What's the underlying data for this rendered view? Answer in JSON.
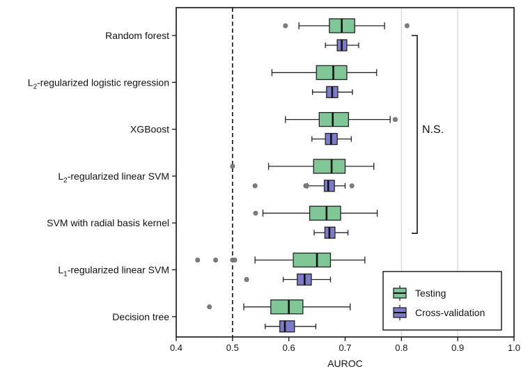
{
  "chart_data": {
    "type": "box",
    "orientation": "horizontal",
    "xlabel": "AUROC",
    "xlim": [
      0.4,
      1.0
    ],
    "xticks": [
      "0.4",
      "0.5",
      "0.6",
      "0.7",
      "0.8",
      "0.9",
      "1.0"
    ],
    "reference_line": 0.5,
    "vertical_grid_at": [
      0.8,
      0.9
    ],
    "significance_label": "N.S.",
    "significance_bracket": {
      "from": "Random forest",
      "to": "SVM with radial basis kernel"
    },
    "legend": {
      "position": "lower-right",
      "entries": [
        {
          "name": "Testing",
          "color": "#7fc796"
        },
        {
          "name": "Cross-validation",
          "color": "#7b7bc9"
        }
      ]
    },
    "categories": [
      {
        "label": "Random forest",
        "sub": ""
      },
      {
        "label": "L",
        "sub": "2",
        "rest": "-regularized logistic regression"
      },
      {
        "label": "XGBoost",
        "sub": ""
      },
      {
        "label": "L",
        "sub": "2",
        "rest": "-regularized linear SVM"
      },
      {
        "label": "SVM with radial basis kernel",
        "sub": ""
      },
      {
        "label": "L",
        "sub": "1",
        "rest": "-regularized linear SVM"
      },
      {
        "label": "Decision tree",
        "sub": ""
      }
    ],
    "series": [
      {
        "name": "Testing",
        "color": "#7fc796",
        "boxes": [
          {
            "whislo": 0.618,
            "q1": 0.672,
            "med": 0.694,
            "q3": 0.717,
            "whishi": 0.77,
            "fliers": [
              0.594,
              0.81
            ]
          },
          {
            "whislo": 0.57,
            "q1": 0.649,
            "med": 0.679,
            "q3": 0.703,
            "whishi": 0.756,
            "fliers": []
          },
          {
            "whislo": 0.594,
            "q1": 0.654,
            "med": 0.678,
            "q3": 0.706,
            "whishi": 0.78,
            "fliers": [
              0.789
            ]
          },
          {
            "whislo": 0.564,
            "q1": 0.644,
            "med": 0.676,
            "q3": 0.7,
            "whishi": 0.751,
            "fliers": [
              0.5
            ]
          },
          {
            "whislo": 0.554,
            "q1": 0.637,
            "med": 0.667,
            "q3": 0.692,
            "whishi": 0.757,
            "fliers": [
              0.541
            ]
          },
          {
            "whislo": 0.54,
            "q1": 0.608,
            "med": 0.65,
            "q3": 0.674,
            "whishi": 0.735,
            "fliers": [
              0.438,
              0.47,
              0.5,
              0.504
            ]
          },
          {
            "whislo": 0.52,
            "q1": 0.568,
            "med": 0.6,
            "q3": 0.625,
            "whishi": 0.709,
            "fliers": [
              0.459
            ]
          }
        ]
      },
      {
        "name": "Cross-validation",
        "color": "#7b7bc9",
        "boxes": [
          {
            "whislo": 0.665,
            "q1": 0.686,
            "med": 0.694,
            "q3": 0.703,
            "whishi": 0.724,
            "fliers": []
          },
          {
            "whislo": 0.642,
            "q1": 0.667,
            "med": 0.677,
            "q3": 0.687,
            "whishi": 0.713,
            "fliers": []
          },
          {
            "whislo": 0.641,
            "q1": 0.665,
            "med": 0.675,
            "q3": 0.686,
            "whishi": 0.711,
            "fliers": []
          },
          {
            "whislo": 0.633,
            "q1": 0.663,
            "med": 0.67,
            "q3": 0.681,
            "whishi": 0.7,
            "fliers": [
              0.54,
              0.63,
              0.632,
              0.712
            ]
          },
          {
            "whislo": 0.645,
            "q1": 0.664,
            "med": 0.672,
            "q3": 0.682,
            "whishi": 0.705,
            "fliers": []
          },
          {
            "whislo": 0.59,
            "q1": 0.615,
            "med": 0.628,
            "q3": 0.64,
            "whishi": 0.674,
            "fliers": [
              0.525
            ]
          },
          {
            "whislo": 0.558,
            "q1": 0.584,
            "med": 0.593,
            "q3": 0.61,
            "whishi": 0.648,
            "fliers": []
          }
        ]
      }
    ]
  }
}
